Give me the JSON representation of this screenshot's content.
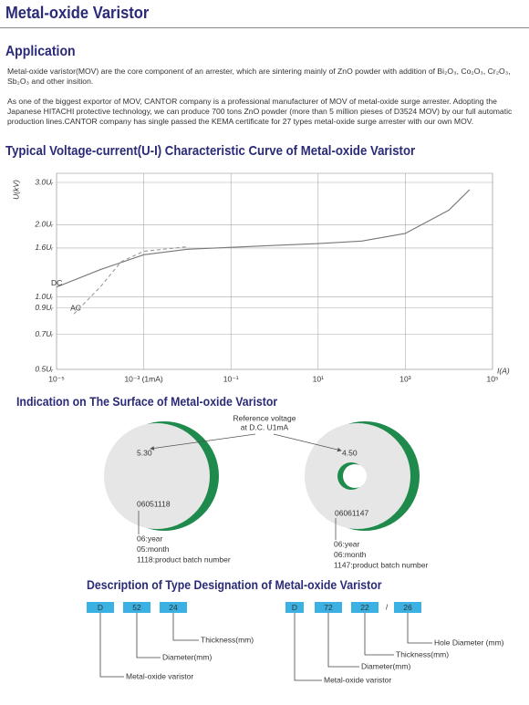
{
  "header": {
    "title": "Metal-oxide Varistor"
  },
  "application": {
    "heading": "Application",
    "paragraphs": [
      "Metal-oxide varistor(MOV) are the core component of an arrester, which are sintering mainly of ZnO powder with addition of Bi₂O₃, Co₂O₃, Cr₂O₃, Sb₂O₃ and other insition.",
      "As one of the biggest exportor of MOV, CANTOR company is a professional manufacturer of MOV of metal-oxide surge arrester. Adopting the Japanese HITACHI protective technology, we can produce 700 tons ZnO powder  (more than 5 million pieses of D3524 MOV) by our full automatic production lines.CANTOR company has single passed the KEMA certificate for 27 types metal-oxide surge arrester with our own MOV."
    ]
  },
  "chart": {
    "type": "line",
    "title": "Typical Voltage-current(U-I) Characteristic Curve of Metal-oxide Varistor",
    "xlabel": "I(A)",
    "ylabel": "U(kV)",
    "xlog": true,
    "ylog": true,
    "grid": true,
    "xlim": [
      1e-05,
      100000
    ],
    "ylim": [
      0.5,
      3.0
    ],
    "xticks": [
      {
        "value": 1e-05,
        "label": "10⁻⁵"
      },
      {
        "value": 0.001,
        "label": "10⁻³ (1mA)"
      },
      {
        "value": 0.1,
        "label": "10⁻¹"
      },
      {
        "value": 10,
        "label": "10¹"
      },
      {
        "value": 1000,
        "label": "10³"
      },
      {
        "value": 100000,
        "label": "10⁵"
      }
    ],
    "yticks": [
      {
        "value": 3.0,
        "label": "3.0Uᵣ"
      },
      {
        "value": 2.0,
        "label": "2.0Uᵣ"
      },
      {
        "value": 1.6,
        "label": "1.6Uᵣ"
      },
      {
        "value": 1.0,
        "label": "1.0Uᵣ"
      },
      {
        "value": 0.9,
        "label": "0.9Uᵣ"
      },
      {
        "value": 0.7,
        "label": "0.7Uᵣ"
      },
      {
        "value": 0.5,
        "label": "0.5Uᵣ"
      }
    ],
    "series": [
      {
        "name": "DC",
        "color": "#777777",
        "dashed": false,
        "x": [
          1e-05,
          0.0001,
          0.001,
          0.01,
          0.1,
          1,
          10,
          100,
          1000,
          10000,
          30000
        ],
        "values": [
          1.1,
          1.3,
          1.5,
          1.58,
          1.61,
          1.64,
          1.67,
          1.71,
          1.84,
          2.3,
          2.8
        ]
      },
      {
        "name": "AC",
        "color": "#999999",
        "dashed": true,
        "x": [
          2.5e-05,
          0.0001,
          0.0003,
          0.001,
          0.01
        ],
        "values": [
          0.85,
          1.1,
          1.4,
          1.55,
          1.62
        ]
      }
    ]
  },
  "indication": {
    "heading": "Indication on The Surface of Metal-oxide Varistor",
    "reference": [
      "Reference voltage",
      "at D.C. U1mA"
    ],
    "discs": [
      {
        "voltage": "5.30",
        "code": "06051118",
        "notes": [
          "06:year",
          "05:month",
          "1118:product batch number"
        ]
      },
      {
        "voltage": "4.50",
        "code": "06061147",
        "notes": [
          "06:year",
          "06:month",
          "1147:product batch number"
        ]
      }
    ]
  },
  "designation": {
    "heading": "Description of Type Designation of Metal-oxide Varistor",
    "left": {
      "boxes": [
        "D",
        "52",
        "24"
      ],
      "labels": [
        "Thickness(mm)",
        "Diameter(mm)",
        "Metal-oxide varistor"
      ]
    },
    "right": {
      "boxes": [
        "D",
        "72",
        "22",
        "26"
      ],
      "separator": "/",
      "labels": [
        "Hole Diameter (mm)",
        "Thickness(mm)",
        "Diameter(mm)",
        "Metal-oxide varistor"
      ]
    }
  }
}
